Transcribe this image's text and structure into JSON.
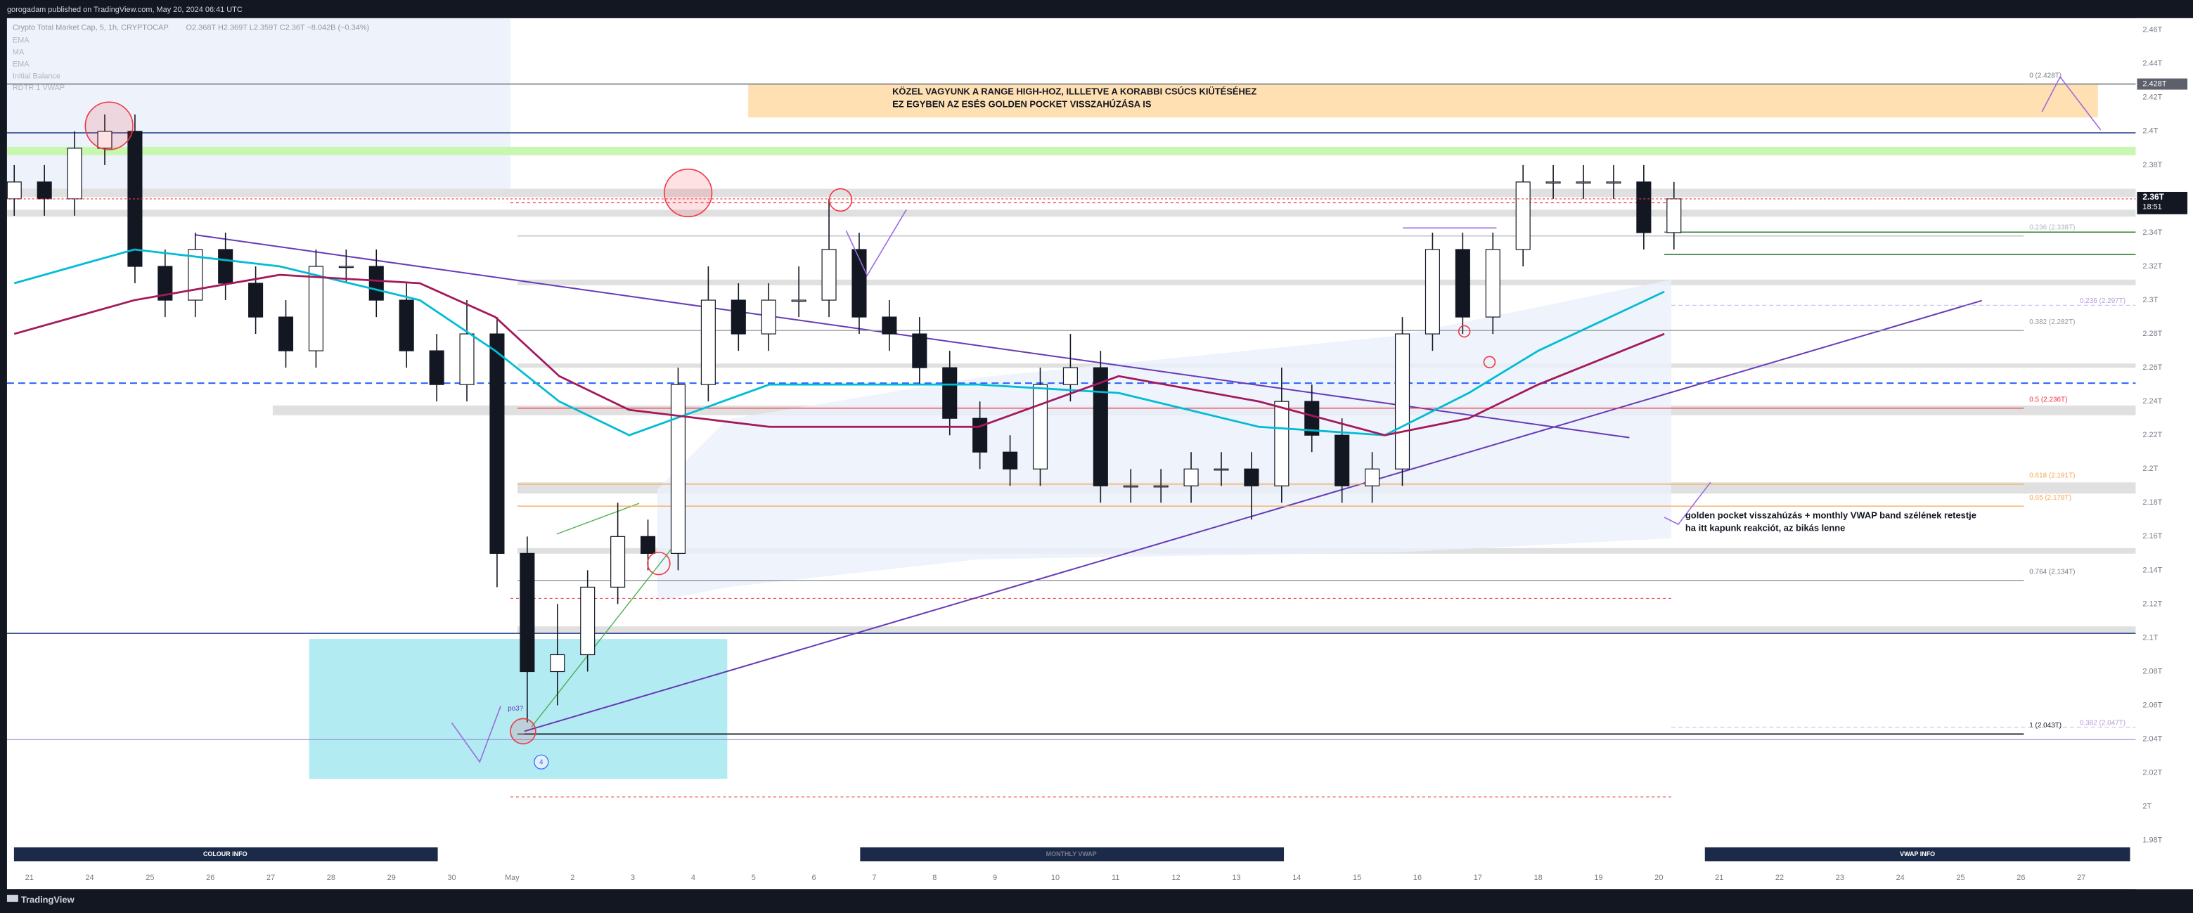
{
  "header": {
    "publisher": "gorogadam published on TradingView.com, May 20, 2024 06:41 UTC"
  },
  "chart_data": {
    "type": "candlestick",
    "title": "Crypto Total Market Cap, 5, 1h, CRYPTOCAP",
    "ohlc_text": "O2.368T H2.369T L2.359T C2.36T −8.042B (−0.34%)",
    "indicators": [
      "EMA",
      "MA",
      "EMA",
      "Initial Balance",
      "RDTR 1 VWAP"
    ],
    "up_color": "#ffffff",
    "down_color": "#131722",
    "x": [
      -0.25,
      0.25,
      0.75,
      1.25,
      1.75,
      2.25,
      2.75,
      3.25,
      3.75,
      4.25,
      4.75,
      5.25,
      5.75,
      6.25,
      6.75,
      7.25,
      7.75,
      8.25,
      8.75,
      9.25,
      9.75,
      10.25,
      10.75,
      11.25,
      11.75,
      12.25,
      12.75,
      13.25,
      13.75,
      14.25,
      14.75,
      15.25,
      15.75,
      16.25,
      16.75,
      17.25,
      17.75,
      18.25,
      18.75,
      19.25,
      19.75,
      20.25,
      20.75,
      21.25,
      21.75,
      22.25,
      22.75,
      23.25,
      23.75,
      24.25,
      24.75,
      25.25,
      25.75,
      26.25,
      26.75,
      27.25
    ],
    "open": [
      2.36,
      2.37,
      2.36,
      2.39,
      2.4,
      2.32,
      2.3,
      2.33,
      2.31,
      2.29,
      2.27,
      2.32,
      2.32,
      2.3,
      2.27,
      2.25,
      2.28,
      2.15,
      2.08,
      2.09,
      2.13,
      2.16,
      2.15,
      2.25,
      2.3,
      2.28,
      2.3,
      2.3,
      2.33,
      2.29,
      2.28,
      2.26,
      2.23,
      2.21,
      2.2,
      2.25,
      2.26,
      2.19,
      2.19,
      2.19,
      2.2,
      2.2,
      2.19,
      2.24,
      2.22,
      2.19,
      2.2,
      2.28,
      2.33,
      2.29,
      2.33,
      2.37,
      2.37,
      2.37,
      2.37,
      2.34
    ],
    "high": [
      2.38,
      2.38,
      2.4,
      2.41,
      2.41,
      2.33,
      2.34,
      2.34,
      2.32,
      2.3,
      2.33,
      2.33,
      2.33,
      2.31,
      2.28,
      2.3,
      2.29,
      2.16,
      2.12,
      2.14,
      2.18,
      2.17,
      2.26,
      2.32,
      2.31,
      2.31,
      2.32,
      2.36,
      2.34,
      2.3,
      2.29,
      2.27,
      2.24,
      2.22,
      2.26,
      2.28,
      2.27,
      2.2,
      2.2,
      2.21,
      2.21,
      2.21,
      2.26,
      2.25,
      2.23,
      2.21,
      2.29,
      2.34,
      2.34,
      2.34,
      2.38,
      2.38,
      2.38,
      2.38,
      2.38,
      2.37
    ],
    "low": [
      2.35,
      2.35,
      2.35,
      2.38,
      2.31,
      2.29,
      2.29,
      2.3,
      2.28,
      2.26,
      2.26,
      2.31,
      2.29,
      2.26,
      2.24,
      2.24,
      2.13,
      2.05,
      2.06,
      2.08,
      2.12,
      2.14,
      2.14,
      2.24,
      2.27,
      2.27,
      2.29,
      2.29,
      2.28,
      2.27,
      2.25,
      2.22,
      2.2,
      2.19,
      2.19,
      2.24,
      2.18,
      2.18,
      2.18,
      2.18,
      2.19,
      2.17,
      2.18,
      2.21,
      2.18,
      2.18,
      2.19,
      2.27,
      2.28,
      2.28,
      2.32,
      2.36,
      2.36,
      2.36,
      2.33,
      2.33
    ],
    "close": [
      2.37,
      2.36,
      2.39,
      2.4,
      2.32,
      2.3,
      2.33,
      2.31,
      2.29,
      2.27,
      2.32,
      2.32,
      2.3,
      2.27,
      2.25,
      2.28,
      2.15,
      2.08,
      2.09,
      2.13,
      2.16,
      2.15,
      2.25,
      2.3,
      2.28,
      2.3,
      2.3,
      2.33,
      2.29,
      2.28,
      2.26,
      2.23,
      2.21,
      2.2,
      2.25,
      2.26,
      2.19,
      2.19,
      2.19,
      2.2,
      2.2,
      2.19,
      2.24,
      2.22,
      2.19,
      2.2,
      2.28,
      2.33,
      2.29,
      2.33,
      2.37,
      2.37,
      2.37,
      2.37,
      2.34,
      2.36
    ],
    "overlays": [
      {
        "color": "#00bcd4",
        "x": [
          -0.25,
          1.74,
          4.15,
          6.47,
          7.72,
          8.78,
          9.94,
          12.26,
          15.73,
          18.05,
          20.37,
          22.46,
          23.85,
          25.0,
          27.09
        ],
        "values": [
          2.31,
          2.33,
          2.32,
          2.3,
          2.27,
          2.24,
          2.22,
          2.25,
          2.25,
          2.245,
          2.225,
          2.22,
          2.245,
          2.27,
          2.305
        ]
      },
      {
        "color": "#a3195b",
        "x": [
          -0.25,
          1.74,
          4.15,
          6.47,
          7.72,
          8.78,
          9.94,
          12.26,
          15.73,
          18.05,
          20.37,
          22.46,
          23.85,
          25.0,
          27.09
        ],
        "values": [
          2.28,
          2.3,
          2.315,
          2.31,
          2.29,
          2.255,
          2.235,
          2.225,
          2.225,
          2.255,
          2.24,
          2.22,
          2.23,
          2.25,
          2.28
        ]
      }
    ],
    "xlim": [
      -0.37,
      34.9
    ],
    "xticks": [
      {
        "value": 0,
        "label": "21"
      },
      {
        "value": 1,
        "label": "24"
      },
      {
        "value": 2,
        "label": "25"
      },
      {
        "value": 3,
        "label": "26"
      },
      {
        "value": 4,
        "label": "27"
      },
      {
        "value": 5,
        "label": "28"
      },
      {
        "value": 6,
        "label": "29"
      },
      {
        "value": 7,
        "label": "30"
      },
      {
        "value": 8,
        "label": "May"
      },
      {
        "value": 9,
        "label": "2"
      },
      {
        "value": 10,
        "label": "3"
      },
      {
        "value": 11,
        "label": "4"
      },
      {
        "value": 12,
        "label": "5"
      },
      {
        "value": 13,
        "label": "6"
      },
      {
        "value": 14,
        "label": "7"
      },
      {
        "value": 15,
        "label": "8"
      },
      {
        "value": 16,
        "label": "9"
      },
      {
        "value": 17,
        "label": "10"
      },
      {
        "value": 18,
        "label": "11"
      },
      {
        "value": 19,
        "label": "12"
      },
      {
        "value": 20,
        "label": "13"
      },
      {
        "value": 21,
        "label": "14"
      },
      {
        "value": 22,
        "label": "15"
      },
      {
        "value": 23,
        "label": "16"
      },
      {
        "value": 24,
        "label": "17"
      },
      {
        "value": 25,
        "label": "18"
      },
      {
        "value": 26,
        "label": "19"
      },
      {
        "value": 27,
        "label": "20"
      },
      {
        "value": 28,
        "label": "21"
      },
      {
        "value": 29,
        "label": "22"
      },
      {
        "value": 30,
        "label": "23"
      },
      {
        "value": 31,
        "label": "24"
      },
      {
        "value": 32,
        "label": "25"
      },
      {
        "value": 33,
        "label": "26"
      },
      {
        "value": 34,
        "label": "27"
      }
    ],
    "ylim": [
      1.966,
      2.467
    ],
    "yticks": [
      {
        "value": 1.98,
        "label": "1.98T"
      },
      {
        "value": 2,
        "label": "2T"
      },
      {
        "value": 2.02,
        "label": "2.02T"
      },
      {
        "value": 2.04,
        "label": "2.04T"
      },
      {
        "value": 2.06,
        "label": "2.06T"
      },
      {
        "value": 2.08,
        "label": "2.08T"
      },
      {
        "value": 2.1,
        "label": "2.1T"
      },
      {
        "value": 2.12,
        "label": "2.12T"
      },
      {
        "value": 2.14,
        "label": "2.14T"
      },
      {
        "value": 2.16,
        "label": "2.16T"
      },
      {
        "value": 2.18,
        "label": "2.18T"
      },
      {
        "value": 2.2,
        "label": "2.2T"
      },
      {
        "value": 2.22,
        "label": "2.22T"
      },
      {
        "value": 2.24,
        "label": "2.24T"
      },
      {
        "value": 2.26,
        "label": "2.26T"
      },
      {
        "value": 2.28,
        "label": "2.28T"
      },
      {
        "value": 2.3,
        "label": "2.3T"
      },
      {
        "value": 2.32,
        "label": "2.32T"
      },
      {
        "value": 2.34,
        "label": "2.34T"
      },
      {
        "value": 2.36,
        "label": "2.36T"
      },
      {
        "value": 2.38,
        "label": "2.38T"
      },
      {
        "value": 2.4,
        "label": "2.4T"
      },
      {
        "value": 2.42,
        "label": "2.42T"
      },
      {
        "value": 2.44,
        "label": "2.44T"
      },
      {
        "value": 2.46,
        "label": "2.46T"
      }
    ],
    "grid": false,
    "fib_levels": [
      {
        "value": 2.428,
        "label": "0 (2.428T)",
        "color": "#787b86"
      },
      {
        "value": 2.338,
        "label": "0.236 (2.338T)",
        "color": "#b2b5be"
      },
      {
        "value": 2.282,
        "label": "0.382 (2.282T)",
        "color": "#9598a1"
      },
      {
        "value": 2.236,
        "label": "0.5 (2.236T)",
        "color": "#f23645"
      },
      {
        "value": 2.191,
        "label": "0.618 (2.191T)",
        "color": "#f7a74f"
      },
      {
        "value": 2.178,
        "label": "0.65 (2.178T)",
        "color": "#f7a74f"
      },
      {
        "value": 2.134,
        "label": "0.764 (2.134T)",
        "color": "#787b86"
      },
      {
        "value": 2.043,
        "label": "1 (2.043T)",
        "color": "#131722"
      }
    ],
    "fib_levels_2": [
      {
        "value": 2.297,
        "label": "0.236 (2.297T)",
        "color": "#b39ddb"
      },
      {
        "value": 2.047,
        "label": "0.382 (2.047T)",
        "color": "#b39ddb"
      }
    ],
    "last_price": {
      "value": 2.36,
      "label": "2.36T"
    },
    "countdown": "18:51",
    "range_high": {
      "value": 2.428,
      "label": "2.428T"
    },
    "annotations": {
      "top_note": [
        "KÖZEL VAGYUNK A RANGE HIGH-HOZ, ILLLETVE A KORABBI CSÚCS KIÜTÉSÉHEZ",
        "EZ EGYBEN AZ ESÉS GOLDEN POCKET VISSZAHÚZÁSA IS"
      ],
      "right_note": [
        "golden pocket visszahúzás + monthly VWAP band szélének retestje",
        "ha itt kapunk reakciót, az bikás lenne"
      ],
      "po3": "po3?",
      "marker": "4"
    }
  },
  "panels": [
    "COLOUR INFO",
    "MONTHLY VWAP",
    "VWAP INFO"
  ],
  "footer": {
    "brand": "TradingView"
  }
}
